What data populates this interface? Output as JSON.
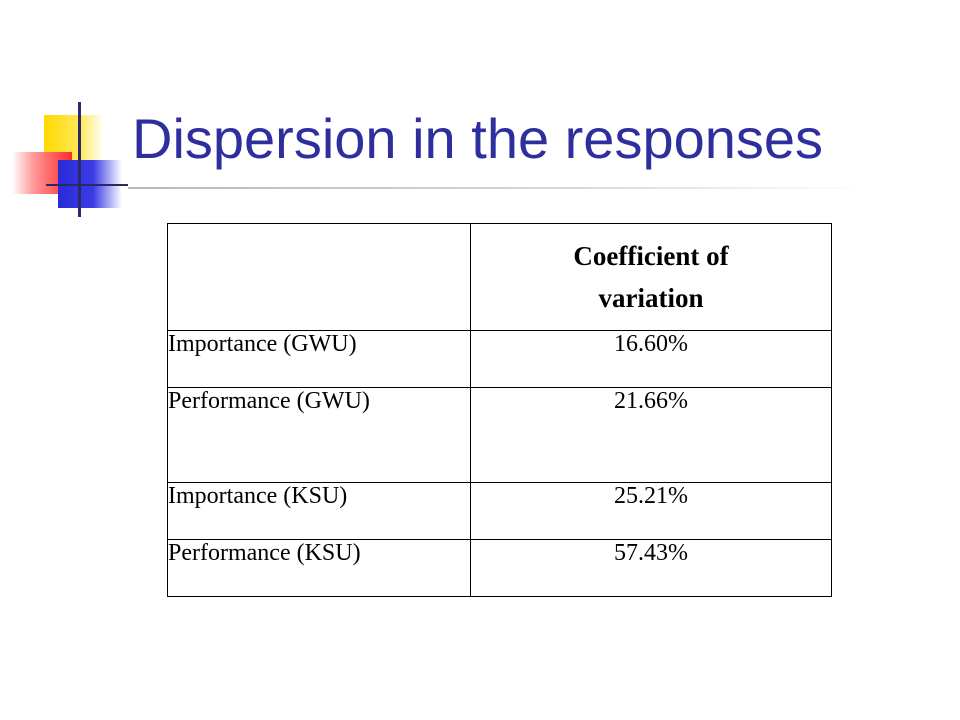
{
  "slide": {
    "title": "Dispersion in the responses",
    "colors": {
      "title": "#2e2e9e",
      "logo_yellow": "#ffd800",
      "logo_red": "#ff2a2a",
      "logo_blue": "#2a2ad8"
    },
    "table": {
      "header": {
        "empty": "",
        "column_line1": "Coefficient of",
        "column_line2": "variation"
      },
      "rows": [
        {
          "label": "Importance (GWU)",
          "value": "16.60%"
        },
        {
          "label": "Performance (GWU)",
          "value": "21.66%"
        },
        {
          "label": "Importance (KSU)",
          "value": "25.21%"
        },
        {
          "label": "Performance (KSU)",
          "value": "57.43%"
        }
      ]
    }
  }
}
